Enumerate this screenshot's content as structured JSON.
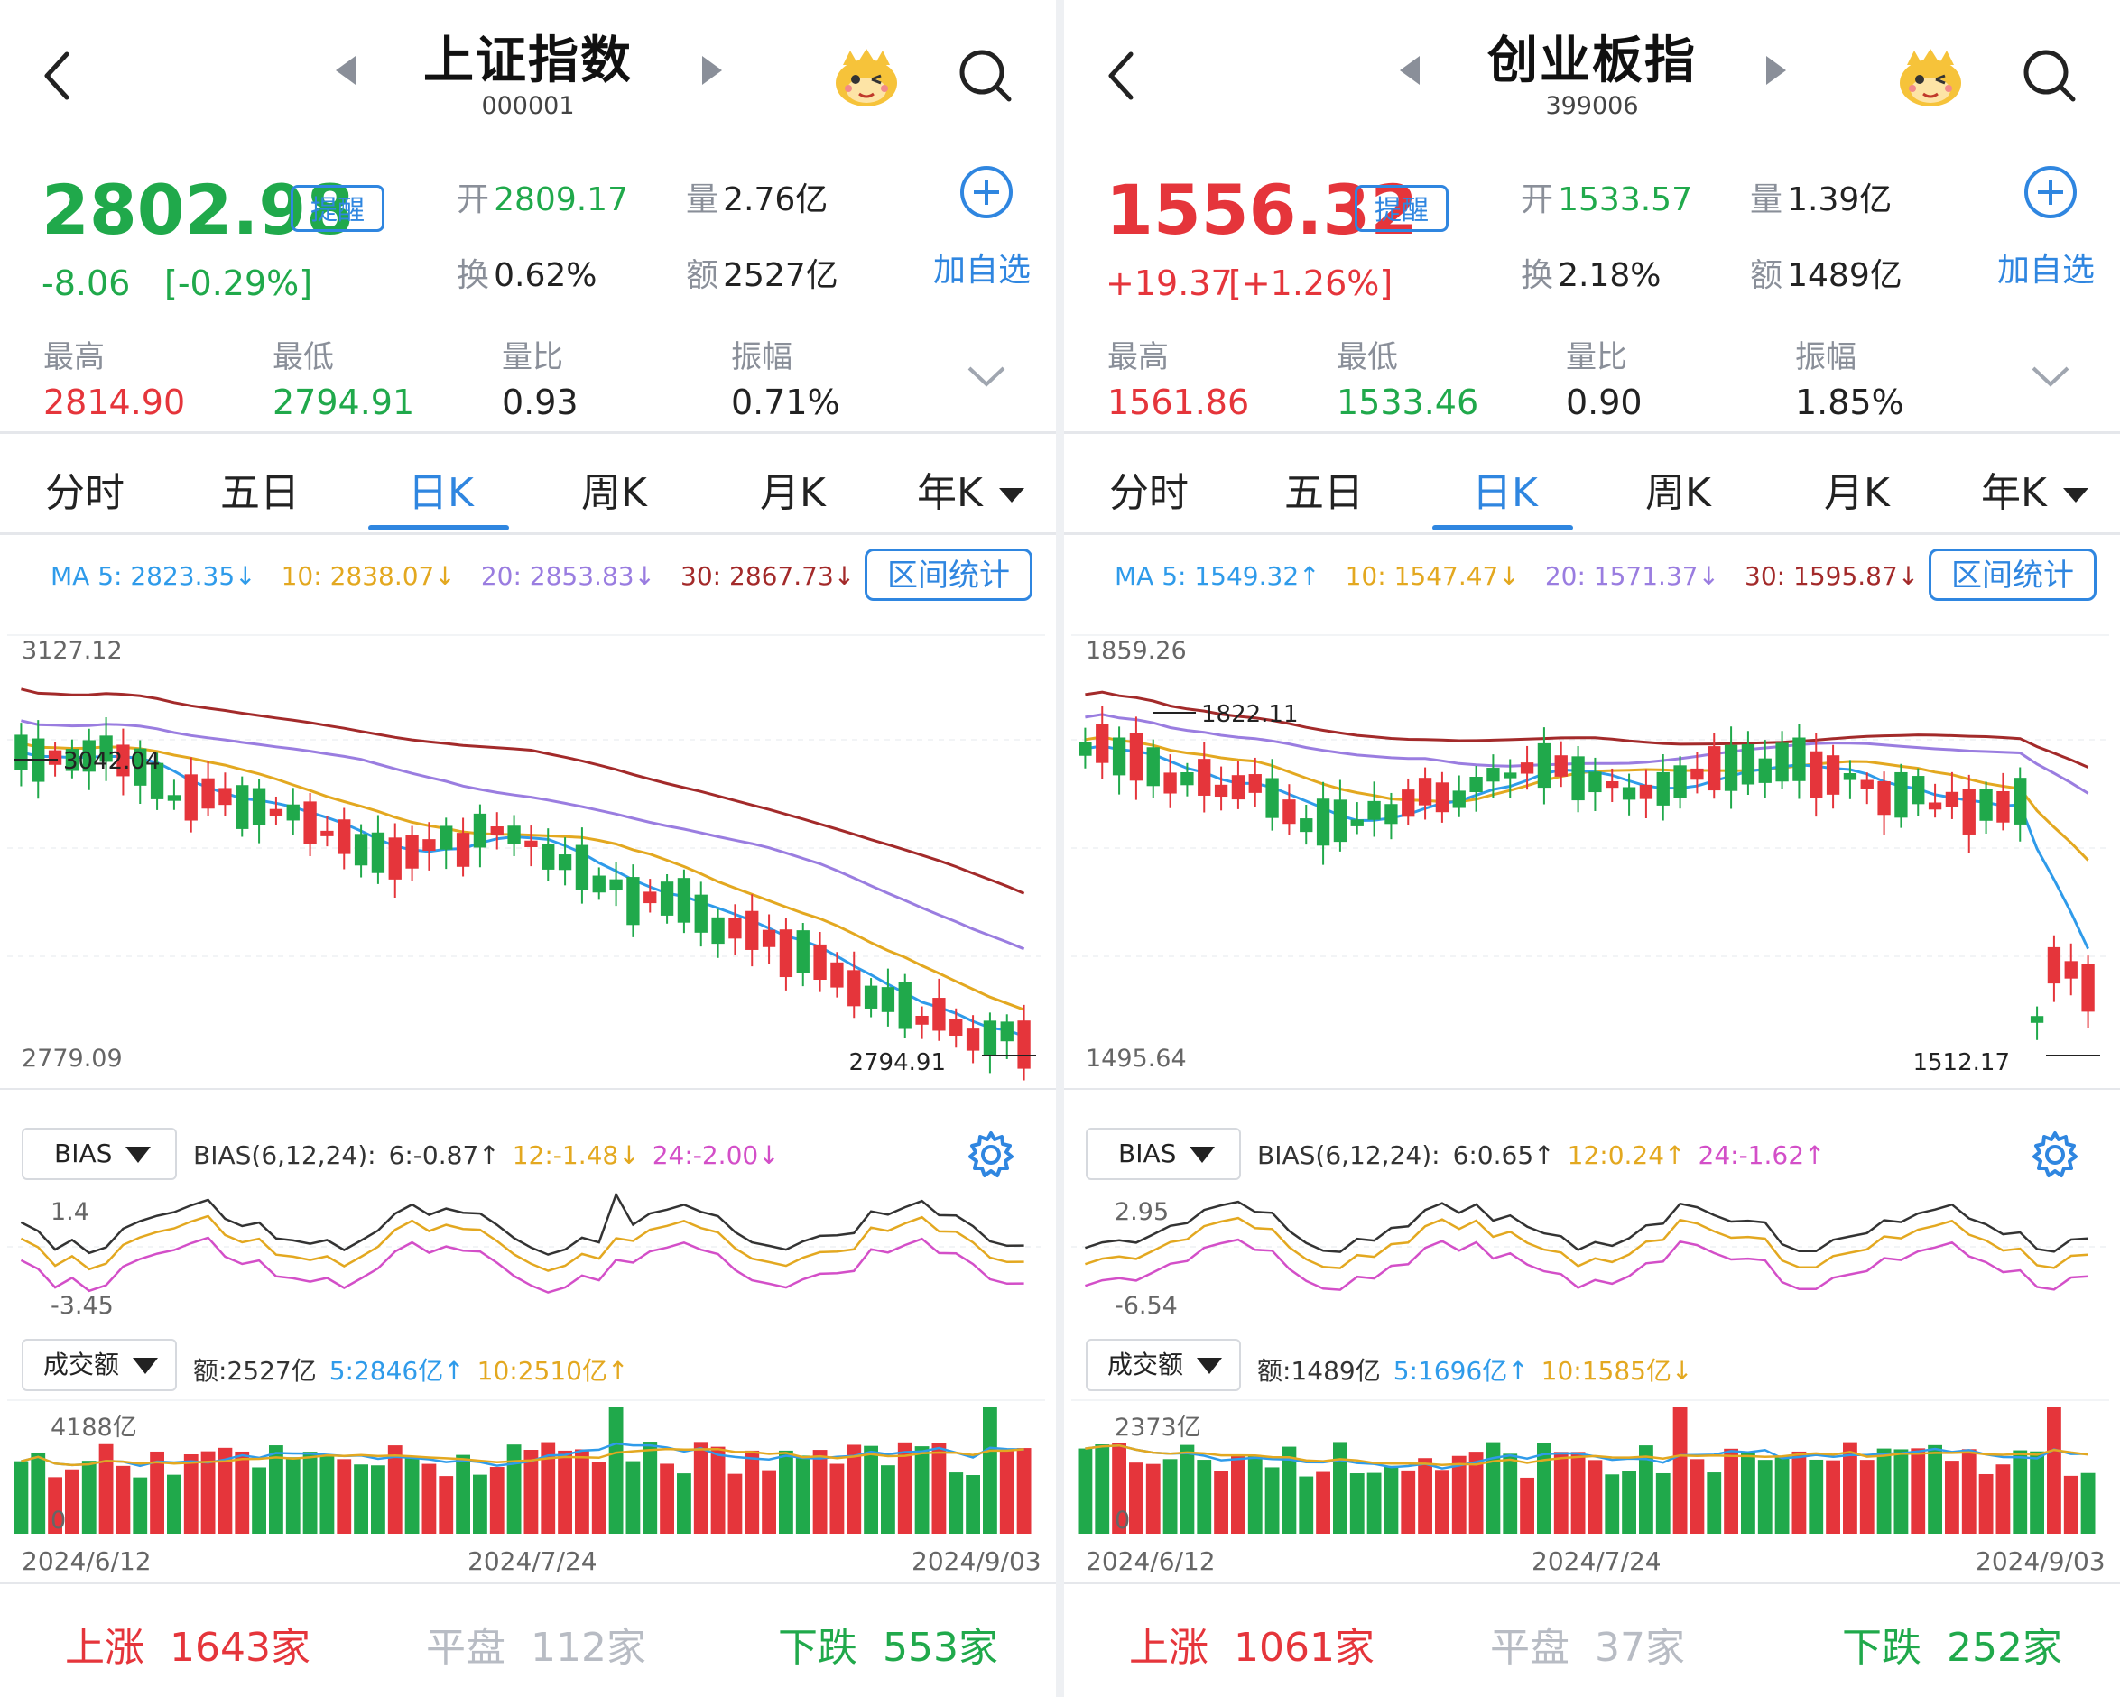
{
  "colors": {
    "up": "#e5353b",
    "down": "#20a94b",
    "blue": "#2f86e0",
    "ma5": "#2f9bea",
    "ma10": "#e3a820",
    "ma20": "#9a7de0",
    "ma30": "#a32a2a",
    "bias6": "#333333",
    "bias12": "#e3a820",
    "bias24": "#d34fc8"
  },
  "panels": [
    {
      "title": "上证指数",
      "code": "000001",
      "price": "2802.98",
      "dir": "down",
      "change": "-8.06",
      "change_pct": "[-0.29%]",
      "remind": "提醒",
      "open_label": "开",
      "open": "2809.17",
      "vol_label": "量",
      "vol": "2.76亿",
      "turnover_label": "换",
      "turnover": "0.62%",
      "amount_label": "额",
      "amount": "2527亿",
      "add_label": "加自选",
      "high_label": "最高",
      "high": "2814.90",
      "low_label": "最低",
      "low": "2794.91",
      "vr_label": "量比",
      "vr": "0.93",
      "amp_label": "振幅",
      "amp": "0.71%",
      "tabs": [
        "分时",
        "五日",
        "日K",
        "周K",
        "月K",
        "年K"
      ],
      "active_tab": 2,
      "ma": {
        "ma5": "MA 5: 2823.35↓",
        "ma10": "10: 2838.07↓",
        "ma20": "20: 2853.83↓",
        "ma30": "30: 2867.73↓"
      },
      "interval_btn": "区间统计",
      "k_top": "3127.12",
      "k_mark_high": "3042.04",
      "k_bottom": "2779.09",
      "k_mark_low": "2794.91",
      "bias_sel": "BIAS",
      "bias": {
        "name": "BIAS(6,12,24):",
        "b6": "6:-0.87↑",
        "b12": "12:-1.48↓",
        "b24": "24:-2.00↓"
      },
      "bias_top": "1.4",
      "bias_bottom": "-3.45",
      "vol_sel": "成交额",
      "vol_info": {
        "amt": "额:2527亿",
        "m5": "5:2846亿↑",
        "m10": "10:2510亿↑"
      },
      "vol_top": "4188亿",
      "vol_zero": "0",
      "dates": [
        "2024/6/12",
        "2024/7/24",
        "2024/9/03"
      ],
      "rise": {
        "label": "上涨",
        "count": "1643家"
      },
      "flat": {
        "label": "平盘",
        "count": "112家"
      },
      "fall": {
        "label": "下跌",
        "count": "553家"
      }
    },
    {
      "title": "创业板指",
      "code": "399006",
      "price": "1556.32",
      "dir": "up",
      "change": "+19.37",
      "change_pct": "[+1.26%]",
      "remind": "提醒",
      "open_label": "开",
      "open": "1533.57",
      "vol_label": "量",
      "vol": "1.39亿",
      "turnover_label": "换",
      "turnover": "2.18%",
      "amount_label": "额",
      "amount": "1489亿",
      "add_label": "加自选",
      "high_label": "最高",
      "high": "1561.86",
      "low_label": "最低",
      "low": "1533.46",
      "vr_label": "量比",
      "vr": "0.90",
      "amp_label": "振幅",
      "amp": "1.85%",
      "tabs": [
        "分时",
        "五日",
        "日K",
        "周K",
        "月K",
        "年K"
      ],
      "active_tab": 2,
      "ma": {
        "ma5": "MA 5: 1549.32↑",
        "ma10": "10: 1547.47↓",
        "ma20": "20: 1571.37↓",
        "ma30": "30: 1595.87↓"
      },
      "interval_btn": "区间统计",
      "k_top": "1859.26",
      "k_mark_high": "1822.11",
      "k_bottom": "1495.64",
      "k_mark_low": "1512.17",
      "bias_sel": "BIAS",
      "bias": {
        "name": "BIAS(6,12,24):",
        "b6": "6:0.65↑",
        "b12": "12:0.24↑",
        "b24": "24:-1.62↑"
      },
      "bias_top": "2.95",
      "bias_bottom": "-6.54",
      "vol_sel": "成交额",
      "vol_info": {
        "amt": "额:1489亿",
        "m5": "5:1696亿↑",
        "m10": "10:1585亿↓"
      },
      "vol_top": "2373亿",
      "vol_zero": "0",
      "dates": [
        "2024/6/12",
        "2024/7/24",
        "2024/9/03"
      ],
      "rise": {
        "label": "上涨",
        "count": "1061家"
      },
      "flat": {
        "label": "平盘",
        "count": "37家"
      },
      "fall": {
        "label": "下跌",
        "count": "252家"
      }
    }
  ]
}
